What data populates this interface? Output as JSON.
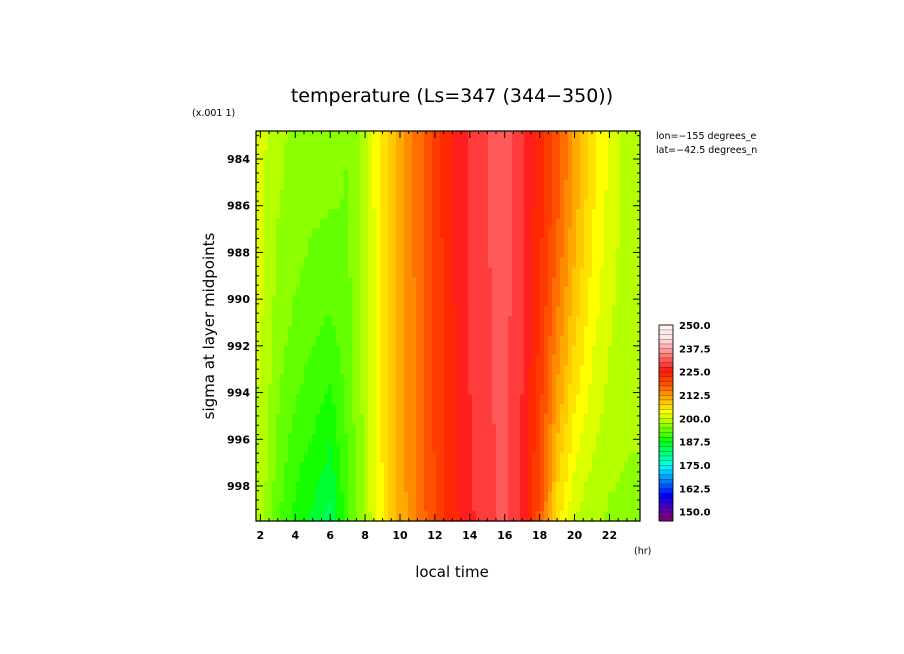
{
  "chart_data": {
    "type": "heatmap",
    "title": "temperature (Ls=347 (344−350))",
    "xlabel": "local time",
    "ylabel": "sigma at layer midpoints",
    "x_unit": "(hr)",
    "y_scale_note": "(x.001 1)",
    "annotations": [
      "lon=−155 degrees_e",
      "lat=−42.5 degrees_n"
    ],
    "x_ticks": [
      "2",
      "4",
      "6",
      "8",
      "10",
      "12",
      "14",
      "16",
      "18",
      "20",
      "22"
    ],
    "y_ticks": [
      "984",
      "986",
      "988",
      "990",
      "992",
      "994",
      "996",
      "998"
    ],
    "xlim": [
      1.75,
      23.75
    ],
    "ylim": [
      0.9828,
      0.9995
    ],
    "y_inverted": true,
    "colorbar": {
      "ticks": [
        "250.0",
        "237.5",
        "225.0",
        "212.5",
        "200.0",
        "187.5",
        "175.0",
        "162.5",
        "150.0"
      ],
      "range": [
        145,
        250
      ],
      "step": 2.5,
      "colors": [
        "#780078",
        "#690091",
        "#5a00aa",
        "#3c00c8",
        "#1e00e1",
        "#0000ff",
        "#0028ff",
        "#0050ff",
        "#0078ff",
        "#00a0ff",
        "#00c8ff",
        "#00f0ff",
        "#00ffd2",
        "#00ffaa",
        "#00ff82",
        "#00ff5a",
        "#00ff32",
        "#14ff00",
        "#3cff00",
        "#64ff00",
        "#8cff00",
        "#b4ff00",
        "#dcff00",
        "#ffff00",
        "#ffe100",
        "#ffc800",
        "#ffaa00",
        "#ff8c00",
        "#ff6e00",
        "#ff5000",
        "#ff3c00",
        "#ff2800",
        "#ff1e1e",
        "#ff3c3c",
        "#ff5a5a",
        "#ff7878",
        "#ff9696",
        "#ffb4b4",
        "#ffd2d2",
        "#ffe8e8",
        "#ffe8e8",
        "#fff4f4"
      ]
    },
    "columns": [
      {
        "x": 2.0,
        "top": 201,
        "bottom": 199
      },
      {
        "x": 3.0,
        "top": 198,
        "bottom": 193
      },
      {
        "x": 4.0,
        "top": 197,
        "bottom": 189
      },
      {
        "x": 5.0,
        "top": 196,
        "bottom": 187
      },
      {
        "x": 6.0,
        "top": 196,
        "bottom": 184
      },
      {
        "x": 7.0,
        "top": 195,
        "bottom": 192
      },
      {
        "x": 8.0,
        "top": 199,
        "bottom": 198
      },
      {
        "x": 9.0,
        "top": 206,
        "bottom": 205
      },
      {
        "x": 10.0,
        "top": 212,
        "bottom": 211
      },
      {
        "x": 11.0,
        "top": 216,
        "bottom": 215
      },
      {
        "x": 12.0,
        "top": 221,
        "bottom": 220
      },
      {
        "x": 13.0,
        "top": 225,
        "bottom": 224
      },
      {
        "x": 14.0,
        "top": 228,
        "bottom": 227
      },
      {
        "x": 15.0,
        "top": 230,
        "bottom": 229
      },
      {
        "x": 16.0,
        "top": 231,
        "bottom": 231
      },
      {
        "x": 17.0,
        "top": 228,
        "bottom": 227
      },
      {
        "x": 18.0,
        "top": 224,
        "bottom": 219
      },
      {
        "x": 19.0,
        "top": 219,
        "bottom": 206
      },
      {
        "x": 20.0,
        "top": 212,
        "bottom": 200
      },
      {
        "x": 21.0,
        "top": 206,
        "bottom": 198
      },
      {
        "x": 22.0,
        "top": 202,
        "bottom": 197
      },
      {
        "x": 23.0,
        "top": 199,
        "bottom": 197
      }
    ]
  }
}
